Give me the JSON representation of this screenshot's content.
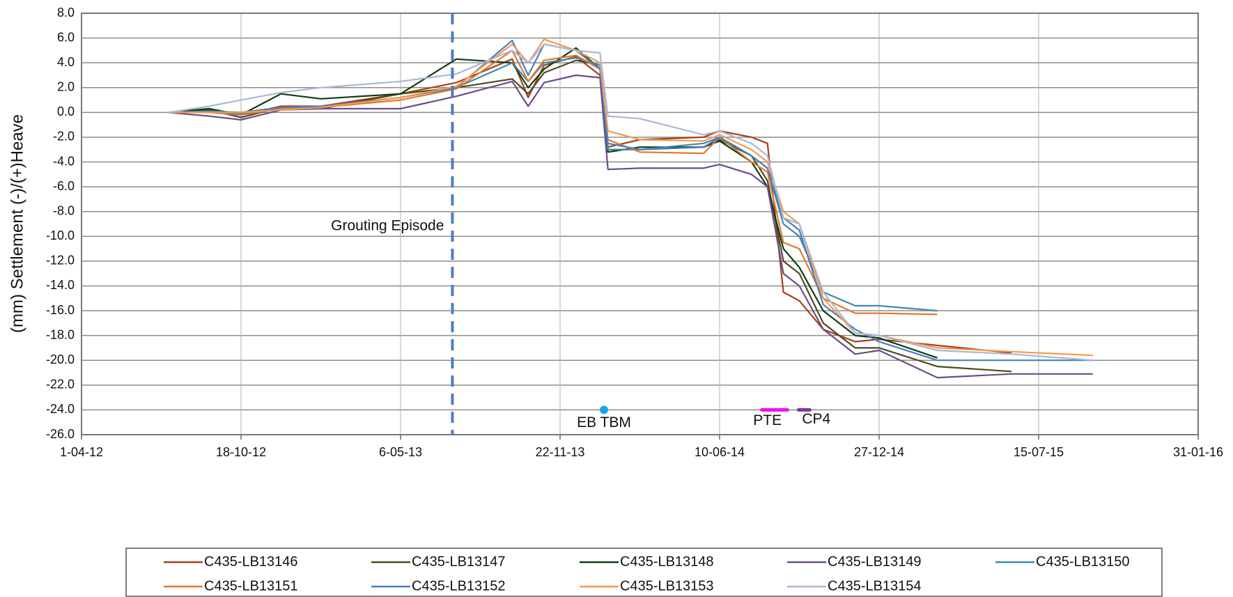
{
  "chart_data": {
    "type": "line",
    "y_label": "(mm) Settlement (-)/(+)Heave",
    "xlim": [
      "2012-04-01",
      "2016-01-31"
    ],
    "xticks": [
      {
        "value": "2012-04-01",
        "label": "1-04-12"
      },
      {
        "value": "2012-10-18",
        "label": "18-10-12"
      },
      {
        "value": "2013-05-06",
        "label": "6-05-13"
      },
      {
        "value": "2013-11-22",
        "label": "22-11-13"
      },
      {
        "value": "2014-06-10",
        "label": "10-06-14"
      },
      {
        "value": "2014-12-27",
        "label": "27-12-14"
      },
      {
        "value": "2015-07-15",
        "label": "15-07-15"
      },
      {
        "value": "2016-01-31",
        "label": "31-01-16"
      }
    ],
    "ylim": [
      -26,
      8
    ],
    "yticks": [
      {
        "value": 8,
        "label": "8.0"
      },
      {
        "value": 6,
        "label": "6.0"
      },
      {
        "value": 4,
        "label": "4.0"
      },
      {
        "value": 2,
        "label": "2.0"
      },
      {
        "value": 0,
        "label": "0.0"
      },
      {
        "value": -2,
        "label": "-2.0"
      },
      {
        "value": -4,
        "label": "-4.0"
      },
      {
        "value": -6,
        "label": "-6.0"
      },
      {
        "value": -8,
        "label": "-8.0"
      },
      {
        "value": -10,
        "label": "-10.0"
      },
      {
        "value": -12,
        "label": "-12.0"
      },
      {
        "value": -14,
        "label": "-14.0"
      },
      {
        "value": -16,
        "label": "-16.0"
      },
      {
        "value": -18,
        "label": "-18.0"
      },
      {
        "value": -20,
        "label": "-20.0"
      },
      {
        "value": -22,
        "label": "-22.0"
      },
      {
        "value": -24,
        "label": "-24.0"
      },
      {
        "value": -26,
        "label": "-26.0"
      }
    ],
    "grid": true,
    "legend": "bottom",
    "x": [
      "2012-07-19",
      "2012-09-08",
      "2012-10-18",
      "2012-12-07",
      "2013-01-26",
      "2013-05-06",
      "2013-07-15",
      "2013-09-23",
      "2013-10-13",
      "2013-11-02",
      "2013-12-12",
      "2014-01-11",
      "2014-01-21",
      "2014-03-02",
      "2014-05-21",
      "2014-06-10",
      "2014-07-20",
      "2014-08-09",
      "2014-08-29",
      "2014-09-18",
      "2014-10-18",
      "2014-11-27",
      "2014-12-27",
      "2015-03-10",
      "2015-06-11",
      "2015-09-21"
    ],
    "series": [
      {
        "name": "C435-LB13146",
        "color": "#a5401a",
        "values": [
          0,
          0.1,
          -0.2,
          0.5,
          0.5,
          1.5,
          2.4,
          4.3,
          1.2,
          3.8,
          4.5,
          3.0,
          -2.8,
          -2.2,
          -2.0,
          -1.5,
          -2.0,
          -2.5,
          -14.5,
          -15.2,
          -17.5,
          -18.5,
          -18.3,
          -18.8,
          -19.4,
          null
        ]
      },
      {
        "name": "C435-LB13147",
        "color": "#4f4a1c",
        "values": [
          0,
          0.2,
          -0.4,
          0.4,
          0.3,
          1.5,
          2.0,
          2.7,
          1.5,
          3.2,
          4.2,
          3.8,
          -3.0,
          -3.0,
          -2.8,
          -2.2,
          -3.5,
          -5.5,
          -12.0,
          -13.0,
          -17.0,
          -19.0,
          -19.0,
          -20.5,
          -20.9,
          null
        ]
      },
      {
        "name": "C435-LB13148",
        "color": "#0f3d14",
        "values": [
          0,
          0.3,
          -0.2,
          1.5,
          1.1,
          1.5,
          4.3,
          4.0,
          2.0,
          3.5,
          5.2,
          3.5,
          -3.2,
          -2.8,
          -2.8,
          -2.3,
          -4.0,
          -6.0,
          -11.0,
          -12.5,
          -16.0,
          -18.0,
          -18.2,
          -19.8,
          null,
          null
        ]
      },
      {
        "name": "C435-LB13149",
        "color": "#6a4c8c",
        "values": [
          0,
          -0.3,
          -0.6,
          0.2,
          0.3,
          0.3,
          1.3,
          2.5,
          0.5,
          2.4,
          3.0,
          2.8,
          -4.6,
          -4.5,
          -4.5,
          -4.2,
          -5.0,
          -6.0,
          -13.0,
          -14.0,
          -17.5,
          -19.5,
          -19.2,
          -21.4,
          -21.1,
          -21.1
        ]
      },
      {
        "name": "C435-LB13150",
        "color": "#3d8ab0",
        "values": [
          0,
          0.1,
          0,
          0.4,
          0.4,
          1.2,
          2.0,
          4.0,
          2.5,
          4.0,
          4.4,
          3.8,
          -3.0,
          -3.0,
          -2.5,
          -2.0,
          -3.5,
          -4.5,
          -9.0,
          -10.0,
          -14.5,
          -15.6,
          -15.6,
          -16.0,
          null,
          null
        ]
      },
      {
        "name": "C435-LB13151",
        "color": "#e07a2e",
        "values": [
          0,
          0,
          -0.2,
          0.3,
          0.4,
          1.0,
          1.9,
          5.0,
          2.5,
          4.2,
          4.6,
          3.5,
          -2.2,
          -3.2,
          -3.3,
          -2.0,
          -4.0,
          -4.8,
          -10.5,
          -11.0,
          -15.0,
          -16.2,
          -16.2,
          -16.3,
          null,
          null
        ]
      },
      {
        "name": "C435-LB13152",
        "color": "#4a7fc1",
        "values": [
          0,
          0,
          -0.1,
          0.4,
          0.5,
          1.2,
          2.0,
          5.8,
          3.0,
          5.5,
          5.0,
          3.5,
          -2.5,
          -3.0,
          -2.8,
          -2.0,
          -3.5,
          -4.5,
          -8.5,
          -9.5,
          -15.5,
          -17.5,
          -18.5,
          -20.0,
          -20.0,
          -20.0
        ]
      },
      {
        "name": "C435-LB13153",
        "color": "#f59a4a",
        "values": [
          0,
          0,
          0,
          0.2,
          0.4,
          1.2,
          2.1,
          5.5,
          4.0,
          5.9,
          5.0,
          4.0,
          -1.5,
          -2.2,
          -2.3,
          -1.8,
          -3.0,
          -4.0,
          -8.0,
          -9.0,
          -15.0,
          -17.8,
          -18.0,
          -19.0,
          -19.3,
          -19.6
        ]
      },
      {
        "name": "C435-LB13154",
        "color": "#aab8d4",
        "values": [
          0,
          0.5,
          1.0,
          1.6,
          2.0,
          2.5,
          3.1,
          5.0,
          4.0,
          5.5,
          5.0,
          4.8,
          -0.3,
          -0.5,
          -1.8,
          -1.5,
          -2.5,
          -3.5,
          -8.5,
          -9.0,
          -14.5,
          -17.8,
          -18.0,
          -19.2,
          -19.5,
          -20.0
        ]
      }
    ],
    "annotations": [
      {
        "text": "Grouting Episode",
        "x": "2013-07-10",
        "color": "#4a7fc1"
      },
      {
        "text": "EB TBM",
        "x": "2014-01-16",
        "y": -24,
        "color": "#1aa7e0"
      },
      {
        "text": "PTE",
        "x": [
          "2014-08-02",
          "2014-09-03"
        ],
        "y": -24,
        "color": "#ee10ee"
      },
      {
        "text": "CP4",
        "x": [
          "2014-09-17",
          "2014-10-01"
        ],
        "y": -24,
        "color": "#7a3a9a"
      }
    ]
  }
}
